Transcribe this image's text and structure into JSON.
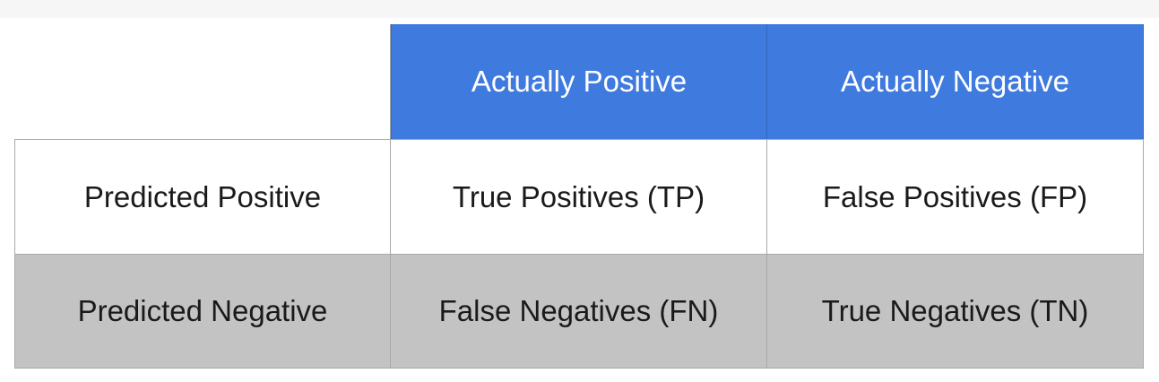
{
  "matrix": {
    "column_headers": [
      "Actually Positive",
      "Actually Negative"
    ],
    "rows": [
      {
        "label": "Predicted Positive",
        "cells": [
          "True Positives (TP)",
          "False Positives (FP)"
        ]
      },
      {
        "label": "Predicted Negative",
        "cells": [
          "False Negatives (FN)",
          "True Negatives (TN)"
        ]
      }
    ]
  },
  "colors": {
    "header_background": "#3f7ade",
    "header_text": "#ffffff",
    "shaded_row_background": "#c3c3c3",
    "grid_line": "#a9a9a9"
  },
  "icons": {
    "cursor": "mouse-pointer-icon"
  }
}
